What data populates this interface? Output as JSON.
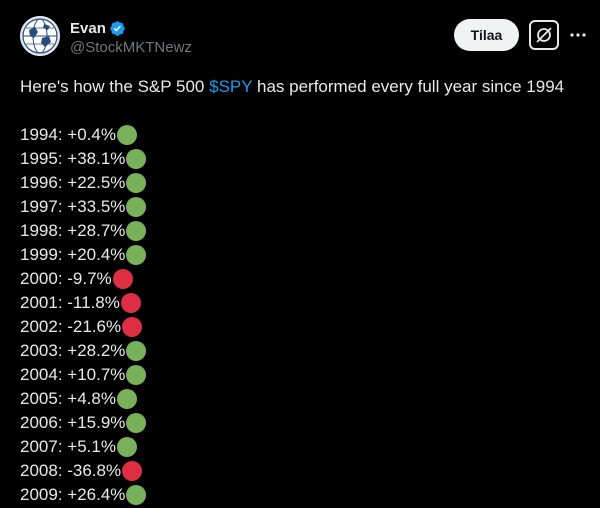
{
  "author": {
    "display_name": "Evan",
    "handle": "@StockMKTNewz",
    "avatar_icon": "globe-avatar",
    "verified_icon": "verified-badge-icon"
  },
  "actions": {
    "subscribe_label": "Tilaa",
    "grok_icon": "grok-icon",
    "more_icon": "more-dots-icon"
  },
  "tweet": {
    "intro_before": "Here's how the S&P 500 ",
    "cashtag": "$SPY",
    "intro_after": " has performed every full year since 1994",
    "rows": [
      {
        "text": "1994: +0.4%",
        "status": "positive"
      },
      {
        "text": "1995: +38.1%",
        "status": "positive"
      },
      {
        "text": "1996: +22.5%",
        "status": "positive"
      },
      {
        "text": "1997: +33.5%",
        "status": "positive"
      },
      {
        "text": "1998: +28.7%",
        "status": "positive"
      },
      {
        "text": "1999: +20.4%",
        "status": "positive"
      },
      {
        "text": "2000: -9.7%",
        "status": "negative"
      },
      {
        "text": "2001: -11.8%",
        "status": "negative"
      },
      {
        "text": "2002: -21.6%",
        "status": "negative"
      },
      {
        "text": "2003: +28.2%",
        "status": "positive"
      },
      {
        "text": "2004: +10.7%",
        "status": "positive"
      },
      {
        "text": "2005: +4.8%",
        "status": "positive"
      },
      {
        "text": "2006: +15.9%",
        "status": "positive"
      },
      {
        "text": "2007: +5.1%",
        "status": "positive"
      },
      {
        "text": "2008: -36.8%",
        "status": "negative"
      },
      {
        "text": "2009: +26.4%",
        "status": "positive"
      }
    ]
  },
  "colors": {
    "positive": "#78b159",
    "negative": "#dd2e44",
    "link": "#1d9bf0",
    "text": "#e7e9ea",
    "muted": "#71767b",
    "background": "#000000"
  }
}
